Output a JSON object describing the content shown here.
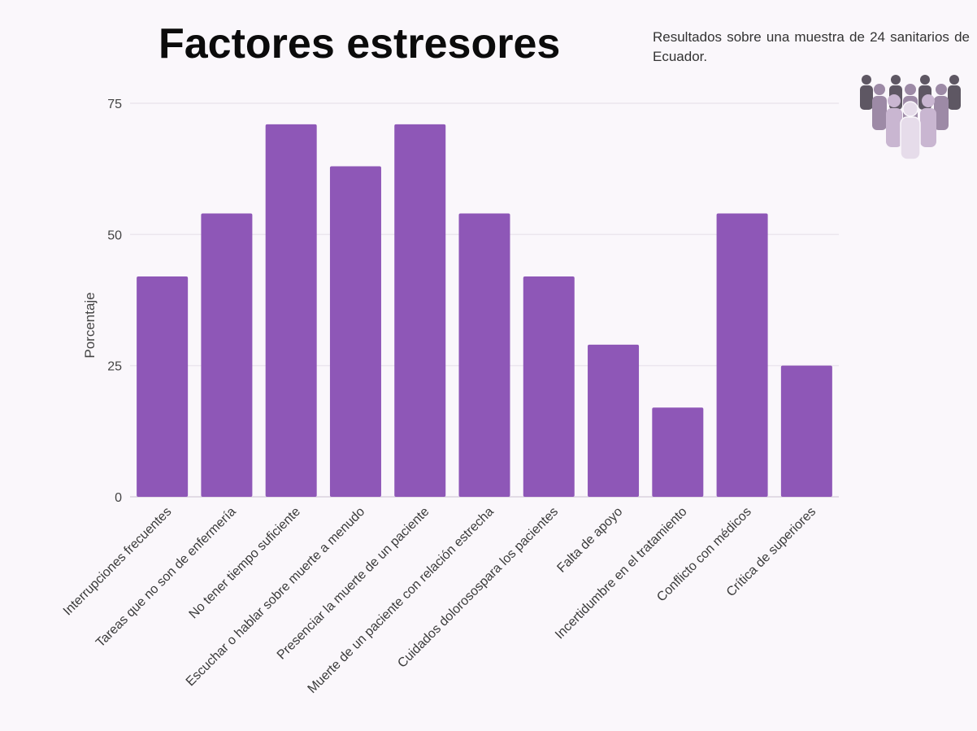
{
  "chart_data": {
    "type": "bar",
    "title": "Factores estresores",
    "subtitle": "Resultados sobre una muestra de 24 sanitarios de Ecuador.",
    "xlabel": "",
    "ylabel": "Porcentaje",
    "ylim": [
      0,
      75
    ],
    "yticks": [
      "0",
      "25",
      "50",
      "75"
    ],
    "grid": true,
    "categories": [
      "Interrupciones frecuentes",
      "Tareas que no son de enfermería",
      "No tener tiempo suficiente",
      "Escuchar o hablar sobre muerte a menudo",
      "Presenciar la muerte de un paciente",
      "Muerte de un paciente con relación estrecha",
      "Cuidados dolorosospara los pacientes",
      "Falta de apoyo",
      "Incertidumbre en el tratamiento",
      "Conflicto con médicos",
      "Crítica de superiores"
    ],
    "values": [
      42,
      54,
      71,
      63,
      71,
      54,
      42,
      29,
      17,
      54,
      25
    ],
    "bar_color": "#8e57b7"
  },
  "icon": "people-group-icon",
  "colors": {
    "background": "#faf7fb",
    "bar": "#8e57b7",
    "grid": "#ebe6ee",
    "people_dark": "#5e5763",
    "people_mid": "#9d8aa6",
    "people_light": "#d2c4d8"
  }
}
